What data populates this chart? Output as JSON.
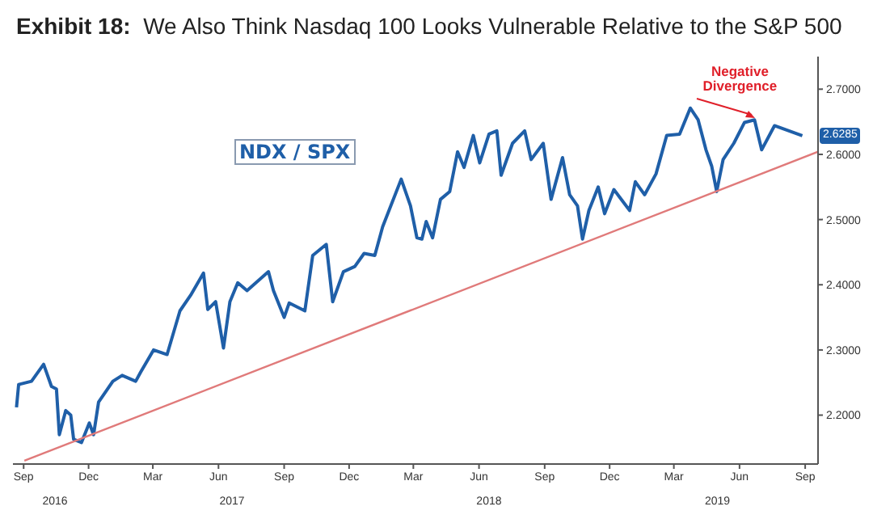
{
  "chart_data": {
    "type": "line",
    "title": "Exhibit 18:  We Also Think Nasdaq 100 Looks Vulnerable Relative to the S&P 500",
    "series": [
      {
        "name": "NDX / SPX",
        "color": "#1f5fa8",
        "x": [
          "2016-08-22",
          "2016-08-25",
          "2016-09-12",
          "2016-09-29",
          "2016-10-10",
          "2016-10-17",
          "2016-10-21",
          "2016-10-30",
          "2016-11-06",
          "2016-11-10",
          "2016-11-21",
          "2016-12-02",
          "2016-12-08",
          "2016-12-15",
          "2017-01-04",
          "2017-01-17",
          "2017-02-05",
          "2017-02-12",
          "2017-03-02",
          "2017-03-21",
          "2017-04-08",
          "2017-04-23",
          "2017-05-11",
          "2017-05-17",
          "2017-05-28",
          "2017-06-08",
          "2017-06-17",
          "2017-06-28",
          "2017-07-11",
          "2017-08-10",
          "2017-08-17",
          "2017-09-01",
          "2017-09-08",
          "2017-09-30",
          "2017-10-11",
          "2017-10-30",
          "2017-11-08",
          "2017-11-23",
          "2017-12-09",
          "2017-12-22",
          "2018-01-06",
          "2018-01-17",
          "2018-02-12",
          "2018-02-25",
          "2018-03-06",
          "2018-03-13",
          "2018-03-19",
          "2018-03-28",
          "2018-04-08",
          "2018-04-21",
          "2018-05-02",
          "2018-05-11",
          "2018-05-24",
          "2018-06-02",
          "2018-06-15",
          "2018-06-26",
          "2018-07-02",
          "2018-07-18",
          "2018-08-04",
          "2018-08-13",
          "2018-08-30",
          "2018-09-10",
          "2018-09-26",
          "2018-10-06",
          "2018-10-17",
          "2018-10-24",
          "2018-11-02",
          "2018-11-15",
          "2018-11-24",
          "2018-12-07",
          "2018-12-29",
          "2019-01-06",
          "2019-01-19",
          "2019-02-04",
          "2019-02-19",
          "2019-03-09",
          "2019-03-24",
          "2019-04-04",
          "2019-04-15",
          "2019-04-23",
          "2019-04-30",
          "2019-05-09",
          "2019-05-24",
          "2019-06-08",
          "2019-06-22",
          "2019-07-02",
          "2019-07-20",
          "2019-08-28"
        ],
        "values": [
          2.212,
          2.247,
          2.252,
          2.278,
          2.244,
          2.24,
          2.17,
          2.207,
          2.2,
          2.163,
          2.158,
          2.188,
          2.17,
          2.22,
          2.252,
          2.261,
          2.252,
          2.266,
          2.3,
          2.293,
          2.36,
          2.384,
          2.418,
          2.362,
          2.374,
          2.303,
          2.374,
          2.403,
          2.391,
          2.42,
          2.391,
          2.35,
          2.372,
          2.36,
          2.445,
          2.462,
          2.374,
          2.42,
          2.428,
          2.448,
          2.445,
          2.489,
          2.562,
          2.521,
          2.472,
          2.47,
          2.497,
          2.472,
          2.531,
          2.543,
          2.604,
          2.58,
          2.629,
          2.587,
          2.631,
          2.636,
          2.568,
          2.617,
          2.636,
          2.592,
          2.617,
          2.531,
          2.595,
          2.538,
          2.521,
          2.47,
          2.514,
          2.55,
          2.509,
          2.546,
          2.514,
          2.558,
          2.538,
          2.57,
          2.629,
          2.631,
          2.671,
          2.653,
          2.607,
          2.582,
          2.543,
          2.592,
          2.617,
          2.649,
          2.653,
          2.607,
          2.644,
          2.6285
        ]
      },
      {
        "type": "line",
        "color": "#e07a7a",
        "x": [
          "2016-09-02",
          "2019-09-19"
        ],
        "values": [
          2.13,
          2.604
        ]
      }
    ],
    "xlim": [
      "2016-08-17",
      "2019-09-19"
    ],
    "xticks": [
      {
        "value": "2016-09-01",
        "label": "Sep"
      },
      {
        "value": "2016-12-01",
        "label": "Dec"
      },
      {
        "value": "2017-03-01",
        "label": "Mar"
      },
      {
        "value": "2017-06-01",
        "label": "Jun"
      },
      {
        "value": "2017-09-01",
        "label": "Sep"
      },
      {
        "value": "2017-12-01",
        "label": "Dec"
      },
      {
        "value": "2018-03-01",
        "label": "Mar"
      },
      {
        "value": "2018-06-01",
        "label": "Jun"
      },
      {
        "value": "2018-09-01",
        "label": "Sep"
      },
      {
        "value": "2018-12-01",
        "label": "Dec"
      },
      {
        "value": "2019-03-01",
        "label": "Mar"
      },
      {
        "value": "2019-06-01",
        "label": "Jun"
      },
      {
        "value": "2019-09-01",
        "label": "Sep"
      }
    ],
    "x2lim": [
      "2016-08-17",
      "2019-09-19"
    ],
    "x2ticks": [
      {
        "value": "2016-10-15",
        "label": "2016"
      },
      {
        "value": "2017-06-20",
        "label": "2017"
      },
      {
        "value": "2018-06-15",
        "label": "2018"
      },
      {
        "value": "2019-05-01",
        "label": "2019"
      }
    ],
    "ylim": [
      2.125,
      2.75
    ],
    "yticks": [
      {
        "value": 2.2,
        "label": "2.2000"
      },
      {
        "value": 2.3,
        "label": "2.3000"
      },
      {
        "value": 2.4,
        "label": "2.4000"
      },
      {
        "value": 2.5,
        "label": "2.5000"
      },
      {
        "value": 2.6,
        "label": "2.6000"
      },
      {
        "value": 2.7,
        "label": "2.7000"
      }
    ],
    "annotations": [
      {
        "text": "Negative Divergence",
        "x": "2019-06-22",
        "y": 2.655
      },
      {
        "text": "2.6285",
        "x": "2019-08-28",
        "y": 2.6285
      }
    ],
    "marker": "none",
    "line_style": "solid"
  }
}
